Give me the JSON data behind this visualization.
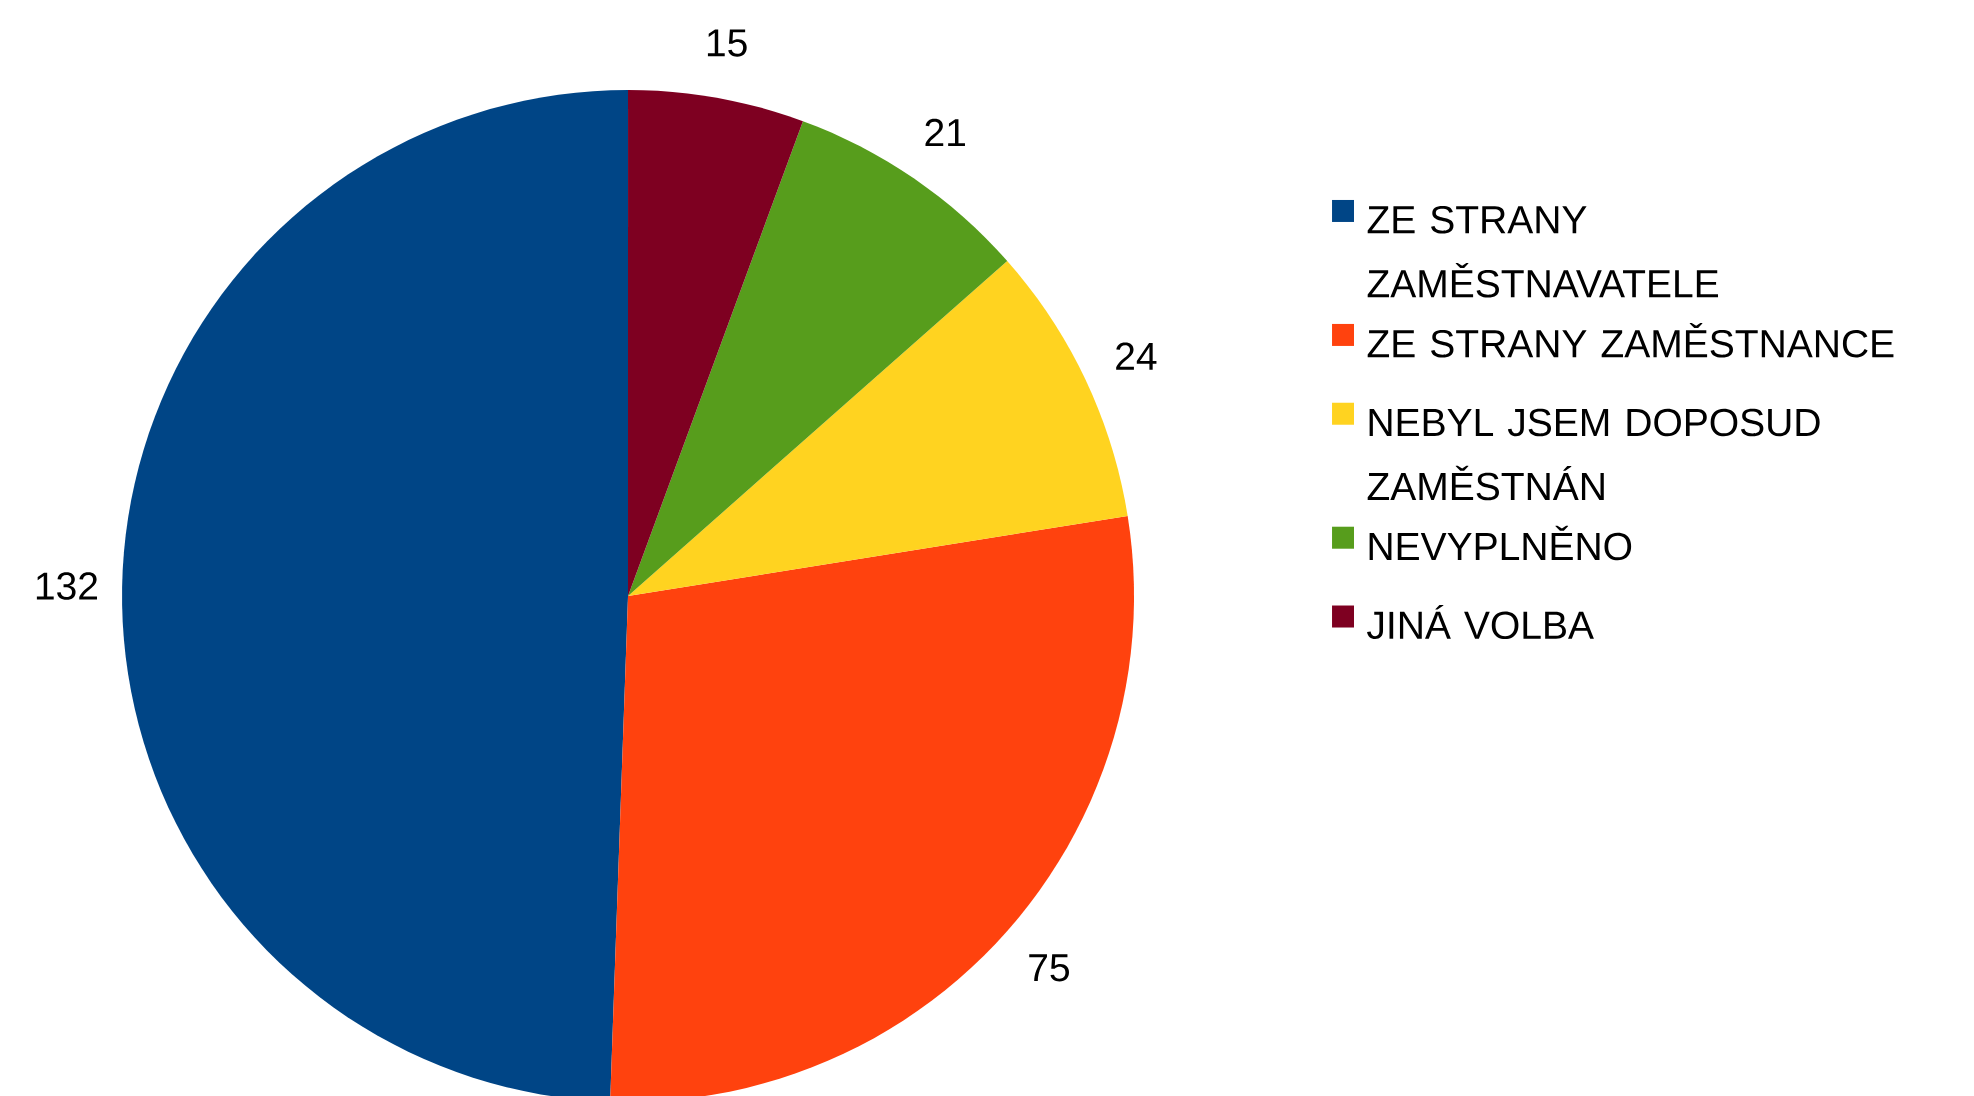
{
  "chart_data": {
    "type": "pie",
    "categories": [
      "ZE STRANY ZAMĚSTNAVATELE",
      "ZE STRANY ZAMĚSTNANCE",
      "NEBYL JSEM DOPOSUD ZAMĚSTNÁN",
      "NEVYPLNĚNO",
      "JINÁ VOLBA"
    ],
    "values": [
      132,
      75,
      24,
      21,
      15
    ],
    "colors": [
      "#004586",
      "#ff420e",
      "#ffd320",
      "#579d1c",
      "#7e0021"
    ],
    "data_labels": true,
    "legend": "right"
  }
}
